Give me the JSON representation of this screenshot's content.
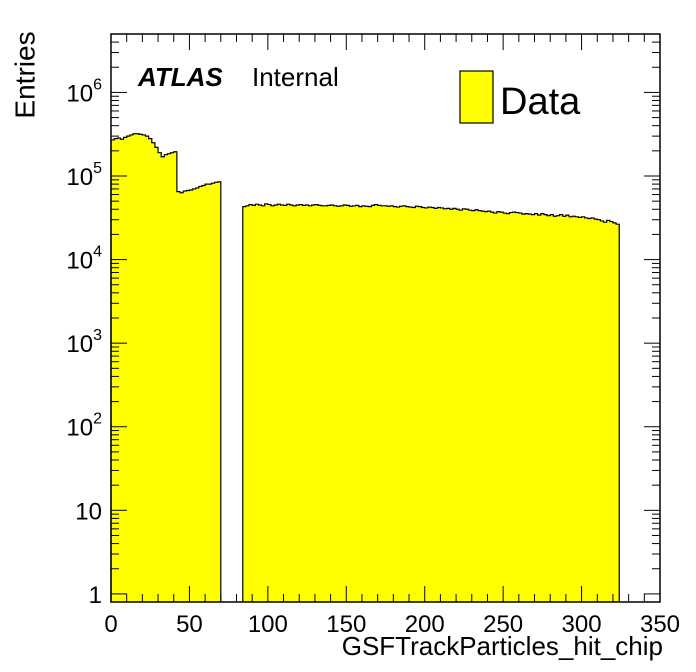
{
  "chart_data": {
    "type": "bar",
    "style": "histogram",
    "xlabel": "GSFTrackParticles_hit_chip",
    "ylabel": "Entries",
    "xlim": [
      0,
      350
    ],
    "ylim": [
      0.8,
      5000000
    ],
    "yscale": "log",
    "x_ticks": [
      "0",
      "50",
      "100",
      "150",
      "200",
      "250",
      "300",
      "350"
    ],
    "y_ticks": [
      {
        "base": "1",
        "exp": ""
      },
      {
        "base": "10",
        "exp": ""
      },
      {
        "base": "10",
        "exp": "2"
      },
      {
        "base": "10",
        "exp": "3"
      },
      {
        "base": "10",
        "exp": "4"
      },
      {
        "base": "10",
        "exp": "5"
      },
      {
        "base": "10",
        "exp": "6"
      }
    ],
    "fill_color": "#ffff00",
    "line_color": "#000000",
    "annotations": {
      "experiment": "ATLAS",
      "status": "Internal"
    },
    "legend": {
      "position": "top-right",
      "entries": [
        "Data"
      ]
    },
    "series": [
      {
        "name": "Data",
        "bin_width": 2,
        "x_start": [
          0,
          84
        ],
        "values": [
          [
            270000,
            280000,
            285000,
            275000,
            290000,
            300000,
            310000,
            320000,
            320000,
            315000,
            310000,
            300000,
            280000,
            250000,
            220000,
            190000,
            170000,
            180000,
            185000,
            190000,
            195000,
            65000,
            63000,
            66000,
            67000,
            68000,
            70000,
            72000,
            75000,
            77000,
            80000,
            80000,
            82000,
            84000,
            85000
          ],
          [
            43000,
            44000,
            45500,
            44500,
            46000,
            45000,
            44000,
            46500,
            45500,
            44000,
            45000,
            46000,
            45000,
            44500,
            46000,
            45000,
            44000,
            45000,
            45500,
            44500,
            45000,
            44000,
            45000,
            45500,
            44500,
            44000,
            44000,
            44500,
            45000,
            44000,
            43500,
            44000,
            45000,
            44500,
            43500,
            44000,
            44500,
            43000,
            44000,
            43500,
            43000,
            44500,
            45500,
            44500,
            44000,
            44000,
            43500,
            44000,
            43000,
            42500,
            43500,
            44000,
            43000,
            42500,
            42000,
            43500,
            43000,
            42000,
            41500,
            42500,
            42000,
            41000,
            42000,
            41500,
            40500,
            41000,
            40000,
            41000,
            40000,
            39000,
            40500,
            40000,
            39000,
            38500,
            39500,
            38500,
            38000,
            37500,
            38000,
            37000,
            36000,
            37500,
            37000,
            36000,
            35500,
            36500,
            37000,
            36500,
            36000,
            35000,
            35500,
            35000,
            34500,
            35500,
            34000,
            35500,
            34500,
            33500,
            34500,
            33000,
            33500,
            34500,
            33000,
            34000,
            32500,
            33000,
            32500,
            32000,
            32500,
            31500,
            31000,
            31500,
            30500,
            30000,
            29000,
            28000,
            29500,
            28500,
            27500,
            26500
          ]
        ]
      }
    ]
  }
}
